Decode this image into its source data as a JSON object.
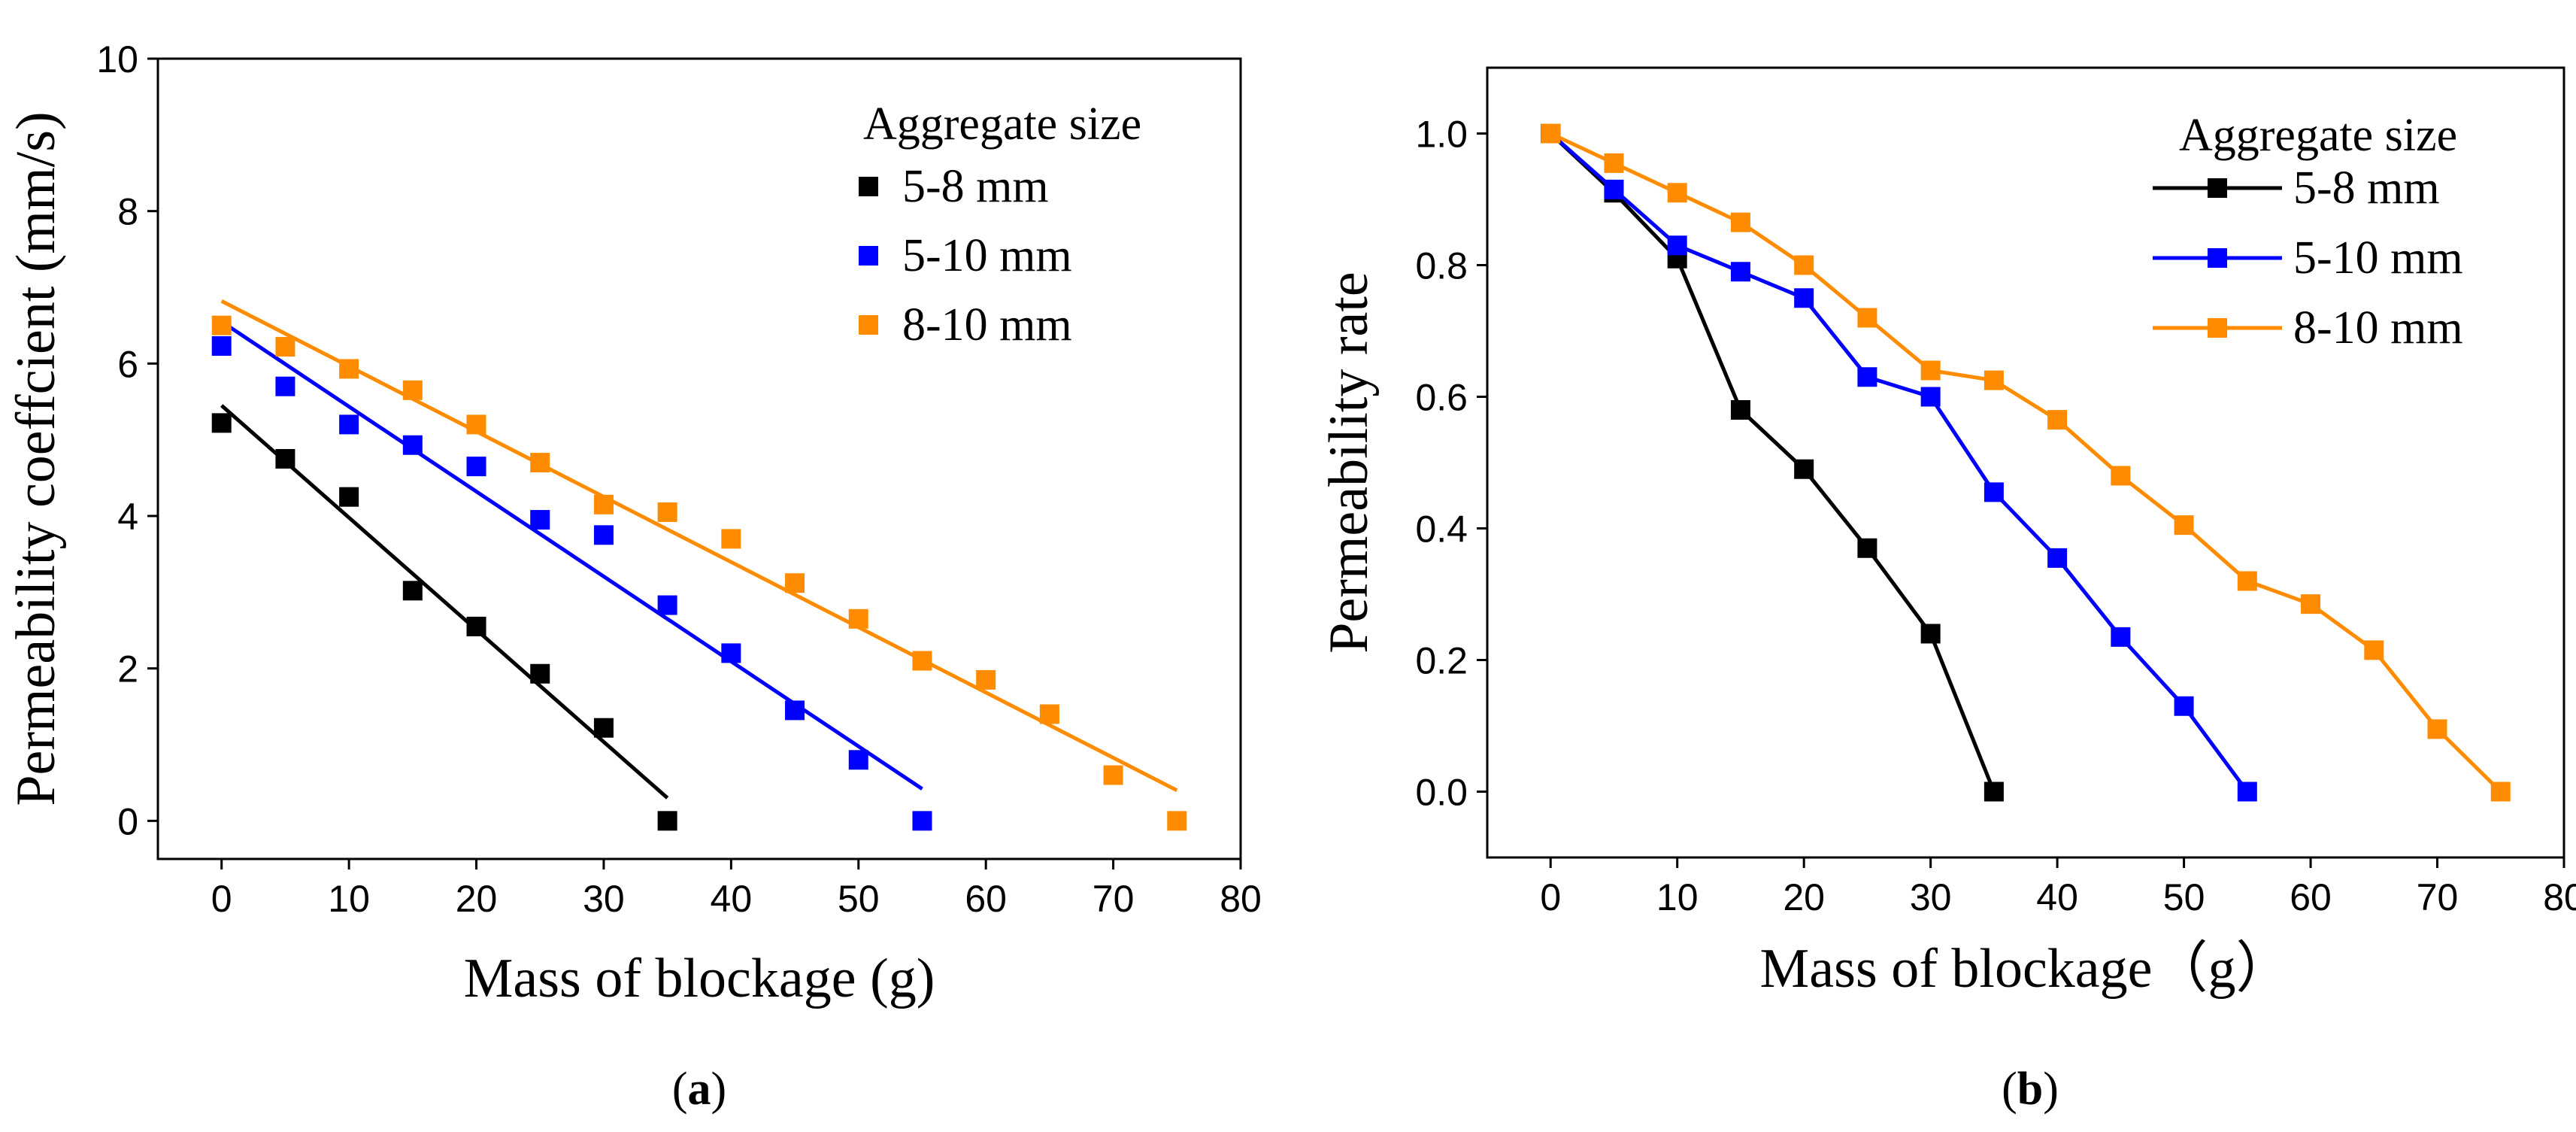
{
  "chart_data": [
    {
      "id": "a",
      "type": "scatter",
      "panel_label": "(a)",
      "panel_letter": "a",
      "xlabel": "Mass of blockage (g)",
      "ylabel": "Permeability coeffcient (mm/s)",
      "xlim": [
        -5,
        80
      ],
      "ylim": [
        -0.5,
        10
      ],
      "xticks": [
        0,
        10,
        20,
        30,
        40,
        50,
        60,
        70,
        80
      ],
      "yticks": [
        0,
        2,
        4,
        6,
        8,
        10
      ],
      "legend_title": "Aggregate size",
      "legend_position": "top-right",
      "series": [
        {
          "name": "5-8 mm",
          "color": "#000000",
          "x": [
            0,
            5,
            10,
            15,
            20,
            25,
            30,
            35
          ],
          "y": [
            5.22,
            4.75,
            4.25,
            3.02,
            2.55,
            1.93,
            1.22,
            0.0
          ],
          "fit": {
            "x": [
              0,
              35
            ],
            "y": [
              5.45,
              0.3
            ]
          }
        },
        {
          "name": "5-10 mm",
          "color": "#0000ff",
          "x": [
            0,
            5,
            10,
            15,
            20,
            25,
            30,
            35,
            40,
            45,
            50,
            55
          ],
          "y": [
            6.23,
            5.7,
            5.2,
            4.93,
            4.65,
            3.95,
            3.75,
            2.83,
            2.2,
            1.45,
            0.8,
            0.0
          ],
          "fit": {
            "x": [
              0,
              55
            ],
            "y": [
              6.55,
              0.42
            ]
          }
        },
        {
          "name": "8-10 mm",
          "color": "#ff8c00",
          "x": [
            0,
            5,
            10,
            15,
            20,
            25,
            30,
            35,
            40,
            45,
            50,
            55,
            60,
            65,
            70,
            75
          ],
          "y": [
            6.5,
            6.22,
            5.93,
            5.65,
            5.2,
            4.7,
            4.15,
            4.05,
            3.7,
            3.12,
            2.65,
            2.1,
            1.85,
            1.4,
            0.6,
            0.0
          ],
          "fit": {
            "x": [
              0,
              75
            ],
            "y": [
              6.82,
              0.4
            ]
          }
        }
      ]
    },
    {
      "id": "b",
      "type": "line",
      "panel_label": "(b)",
      "panel_letter": "b",
      "xlabel": "Mass of blockage（g）",
      "ylabel": "Permeability rate",
      "xlim": [
        -5,
        80
      ],
      "ylim": [
        -0.1,
        1.1
      ],
      "xticks": [
        0,
        10,
        20,
        30,
        40,
        50,
        60,
        70,
        80
      ],
      "yticks": [
        0.0,
        0.2,
        0.4,
        0.6,
        0.8,
        1.0
      ],
      "legend_title": "Aggregate size",
      "legend_position": "top-right",
      "series": [
        {
          "name": "5-8 mm",
          "color": "#000000",
          "x": [
            0,
            5,
            10,
            15,
            20,
            25,
            30,
            35
          ],
          "y": [
            1.0,
            0.91,
            0.81,
            0.58,
            0.49,
            0.37,
            0.24,
            0.0
          ]
        },
        {
          "name": "5-10 mm",
          "color": "#0000ff",
          "x": [
            0,
            5,
            10,
            15,
            20,
            25,
            30,
            35,
            40,
            45,
            50,
            55
          ],
          "y": [
            1.0,
            0.915,
            0.83,
            0.79,
            0.75,
            0.63,
            0.6,
            0.455,
            0.355,
            0.235,
            0.13,
            0.0
          ]
        },
        {
          "name": "8-10 mm",
          "color": "#ff8c00",
          "x": [
            0,
            5,
            10,
            15,
            20,
            25,
            30,
            35,
            40,
            45,
            50,
            55,
            60,
            65,
            70,
            75
          ],
          "y": [
            1.0,
            0.955,
            0.91,
            0.865,
            0.8,
            0.72,
            0.64,
            0.625,
            0.565,
            0.48,
            0.405,
            0.32,
            0.285,
            0.215,
            0.095,
            0.0
          ]
        }
      ]
    }
  ]
}
